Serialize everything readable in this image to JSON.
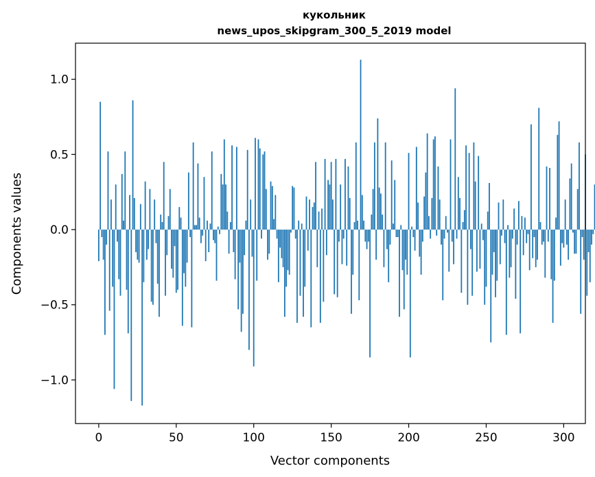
{
  "chart_data": {
    "type": "bar",
    "title": "кукольник",
    "subtitle": "news_upos_skipgram_300_5_2019 model",
    "xlabel": "Vector components",
    "ylabel": "Components values",
    "xlim": [
      -15,
      314
    ],
    "ylim": [
      -1.29,
      1.24
    ],
    "xticks": [
      0,
      50,
      100,
      150,
      200,
      250,
      300
    ],
    "xtick_labels": [
      "0",
      "50",
      "100",
      "150",
      "200",
      "250",
      "300"
    ],
    "yticks": [
      -1.0,
      -0.5,
      0.0,
      0.5,
      1.0
    ],
    "ytick_labels": [
      "−1.0",
      "−0.5",
      "0.0",
      "0.5",
      "1.0"
    ],
    "grid": false,
    "bar_color": "#1f77b4",
    "values": [
      -0.21,
      0.85,
      -0.05,
      -0.2,
      -0.7,
      -0.1,
      0.52,
      -0.54,
      0.2,
      -0.38,
      -1.06,
      0.3,
      -0.08,
      -0.33,
      -0.44,
      0.37,
      0.06,
      0.52,
      -0.4,
      -0.69,
      0.23,
      -1.14,
      0.86,
      0.21,
      -0.15,
      -0.2,
      -0.22,
      0.17,
      -1.17,
      -0.35,
      0.32,
      -0.2,
      -0.13,
      0.27,
      -0.48,
      -0.5,
      0.2,
      -0.09,
      -0.36,
      -0.58,
      0.1,
      0.05,
      0.45,
      -0.44,
      -0.17,
      0.09,
      0.27,
      -0.26,
      -0.32,
      -0.11,
      -0.42,
      -0.4,
      0.15,
      0.08,
      -0.64,
      -0.29,
      -0.38,
      -0.22,
      0.38,
      -0.05,
      -0.65,
      0.58,
      0.03,
      0.03,
      0.44,
      0.08,
      -0.09,
      -0.04,
      0.35,
      -0.21,
      0.06,
      -0.15,
      0.04,
      0.52,
      -0.07,
      -0.09,
      -0.34,
      0.02,
      -0.03,
      0.37,
      0.3,
      0.6,
      0.3,
      0.12,
      -0.16,
      0.05,
      0.56,
      -0.15,
      -0.33,
      0.55,
      -0.53,
      -0.22,
      -0.68,
      -0.56,
      -0.17,
      0.06,
      0.53,
      -0.8,
      0.2,
      -0.18,
      -0.91,
      0.61,
      -0.34,
      0.6,
      0.54,
      -0.06,
      0.5,
      0.52,
      0.27,
      -0.2,
      -0.16,
      0.32,
      0.29,
      0.07,
      0.23,
      -0.06,
      -0.35,
      -0.12,
      -0.19,
      -0.25,
      -0.58,
      -0.38,
      -0.27,
      -0.3,
      -0.02,
      0.29,
      0.28,
      -0.06,
      -0.62,
      0.06,
      -0.44,
      0.04,
      -0.58,
      -0.38,
      0.22,
      -0.14,
      0.2,
      -0.65,
      0.15,
      0.18,
      0.45,
      -0.25,
      0.12,
      -0.62,
      0.14,
      -0.48,
      0.47,
      -0.17,
      0.33,
      0.3,
      0.45,
      0.2,
      -0.43,
      0.47,
      -0.45,
      -0.08,
      0.3,
      -0.23,
      -0.06,
      0.47,
      -0.24,
      0.42,
      0.21,
      -0.56,
      -0.3,
      0.05,
      0.58,
      0.06,
      -0.47,
      1.13,
      0.23,
      0.06,
      -0.08,
      -0.13,
      -0.08,
      -0.85,
      0.1,
      0.27,
      0.58,
      -0.2,
      0.74,
      0.28,
      0.24,
      0.1,
      -0.25,
      0.58,
      -0.13,
      -0.35,
      -0.1,
      0.46,
      0.04,
      0.33,
      -0.05,
      -0.05,
      -0.58,
      0.03,
      -0.27,
      -0.53,
      -0.2,
      -0.3,
      0.51,
      -0.85,
      0.02,
      -0.05,
      -0.14,
      0.55,
      0.18,
      -0.18,
      -0.3,
      -0.08,
      0.22,
      0.38,
      0.64,
      0.09,
      -0.06,
      0.21,
      0.6,
      0.62,
      -0.04,
      0.42,
      0.2,
      -0.1,
      -0.47,
      -0.06,
      0.09,
      -0.02,
      -0.28,
      0.6,
      -0.08,
      -0.23,
      0.94,
      -0.06,
      0.35,
      0.21,
      -0.42,
      0.05,
      0.13,
      0.56,
      -0.5,
      0.51,
      -0.13,
      -0.44,
      0.58,
      0.32,
      -0.28,
      0.49,
      -0.26,
      0.04,
      -0.07,
      -0.5,
      -0.38,
      0.12,
      0.31,
      -0.75,
      -0.3,
      -0.15,
      -0.45,
      -0.34,
      0.18,
      -0.23,
      -0.04,
      0.2,
      -0.09,
      -0.7,
      0.03,
      -0.32,
      -0.25,
      -0.06,
      0.14,
      -0.46,
      -0.1,
      0.19,
      -0.69,
      0.09,
      -0.17,
      0.08,
      -0.09,
      -0.03,
      -0.27,
      0.7,
      -0.19,
      -0.05,
      -0.25,
      -0.2,
      0.81,
      0.05,
      -0.1,
      -0.08,
      -0.32,
      0.42,
      -0.08,
      0.41,
      -0.33,
      -0.62,
      -0.34,
      0.08,
      0.63,
      0.72,
      -0.24,
      -0.09,
      -0.12,
      0.2,
      -0.1,
      -0.2,
      0.34,
      0.44,
      -0.02,
      -0.16,
      -0.16,
      0.27,
      0.58,
      -0.56,
      -0.05,
      -0.2,
      0.5,
      -0.44,
      -0.15,
      -0.35,
      -0.1,
      -0.03,
      0.3
    ]
  }
}
